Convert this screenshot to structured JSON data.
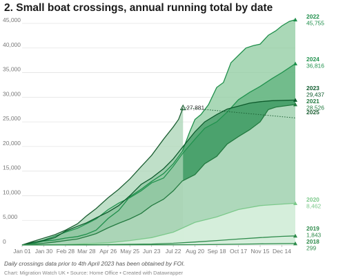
{
  "title": "2. Small boat crossings, annual running total by date",
  "footer": {
    "note": "Daily crossings data prior to 4th April 2023 has been obtained by FOI.",
    "source": "Chart: Migration Watch UK • Source: Home Office • Created with Datawrapper"
  },
  "chart_data": {
    "type": "line",
    "title": "2. Small boat crossings, annual running total by date",
    "xlabel": "",
    "ylabel": "",
    "x_unit": "day of year",
    "xlim": [
      1,
      366
    ],
    "ylim": [
      0,
      45000
    ],
    "grid": true,
    "x_ticks": [
      {
        "label": "Jan 01",
        "day": 1
      },
      {
        "label": "Jan 30",
        "day": 30
      },
      {
        "label": "Feb 28",
        "day": 59
      },
      {
        "label": "Mar 28",
        "day": 87
      },
      {
        "label": "Apr 26",
        "day": 116
      },
      {
        "label": "May 25",
        "day": 145
      },
      {
        "label": "Jun 23",
        "day": 174
      },
      {
        "label": "Jul 22",
        "day": 203
      },
      {
        "label": "Aug 20",
        "day": 232
      },
      {
        "label": "Sep 18",
        "day": 261
      },
      {
        "label": "Oct 17",
        "day": 290
      },
      {
        "label": "Nov 15",
        "day": 319
      },
      {
        "label": "Dec 14",
        "day": 348
      }
    ],
    "y_ticks": [
      {
        "label": "0",
        "value": 0
      },
      {
        "label": "5,000",
        "value": 5000
      },
      {
        "label": "10,000",
        "value": 10000
      },
      {
        "label": "15,000",
        "value": 15000
      },
      {
        "label": "20,000",
        "value": 20000
      },
      {
        "label": "25,000",
        "value": 25000
      },
      {
        "label": "30,000",
        "value": 30000
      },
      {
        "label": "35,000",
        "value": 35000
      },
      {
        "label": "40,000",
        "value": 40000
      },
      {
        "label": "45,000",
        "value": 45000
      }
    ],
    "series": [
      {
        "name": "2022",
        "end_label": "45,755",
        "color": "#1e8e4a",
        "fill": "#8ecb9f",
        "points": [
          [
            1,
            0
          ],
          [
            15,
            300
          ],
          [
            30,
            800
          ],
          [
            45,
            1000
          ],
          [
            59,
            1400
          ],
          [
            75,
            1700
          ],
          [
            87,
            2200
          ],
          [
            100,
            3000
          ],
          [
            116,
            5400
          ],
          [
            130,
            7000
          ],
          [
            145,
            9800
          ],
          [
            160,
            11300
          ],
          [
            174,
            12900
          ],
          [
            190,
            14500
          ],
          [
            203,
            16500
          ],
          [
            215,
            19000
          ],
          [
            225,
            23000
          ],
          [
            232,
            25500
          ],
          [
            240,
            26500
          ],
          [
            250,
            28500
          ],
          [
            261,
            32000
          ],
          [
            270,
            33000
          ],
          [
            280,
            37000
          ],
          [
            290,
            38500
          ],
          [
            300,
            40000
          ],
          [
            310,
            40500
          ],
          [
            319,
            40800
          ],
          [
            330,
            42600
          ],
          [
            340,
            43500
          ],
          [
            348,
            44500
          ],
          [
            358,
            45400
          ],
          [
            366,
            45755
          ]
        ]
      },
      {
        "name": "2024",
        "end_label": "36,816",
        "color": "#21924e",
        "fill": "#5fb37e",
        "points": [
          [
            1,
            0
          ],
          [
            15,
            400
          ],
          [
            30,
            1000
          ],
          [
            45,
            1800
          ],
          [
            59,
            2600
          ],
          [
            75,
            3400
          ],
          [
            87,
            4300
          ],
          [
            100,
            5300
          ],
          [
            116,
            7200
          ],
          [
            130,
            8500
          ],
          [
            145,
            9600
          ],
          [
            160,
            11000
          ],
          [
            174,
            12600
          ],
          [
            190,
            13600
          ],
          [
            203,
            16000
          ],
          [
            215,
            18500
          ],
          [
            232,
            21500
          ],
          [
            245,
            23700
          ],
          [
            261,
            25000
          ],
          [
            275,
            27000
          ],
          [
            290,
            29500
          ],
          [
            305,
            31000
          ],
          [
            319,
            32200
          ],
          [
            335,
            33800
          ],
          [
            348,
            35000
          ],
          [
            366,
            36816
          ]
        ]
      },
      {
        "name": "2023",
        "end_label": "29,437",
        "color": "#0d5a2c",
        "fill": "#3f9a63",
        "points": [
          [
            1,
            0
          ],
          [
            15,
            500
          ],
          [
            30,
            900
          ],
          [
            45,
            1500
          ],
          [
            59,
            2800
          ],
          [
            75,
            3800
          ],
          [
            87,
            4500
          ],
          [
            100,
            5500
          ],
          [
            116,
            6700
          ],
          [
            130,
            8000
          ],
          [
            145,
            10000
          ],
          [
            160,
            12300
          ],
          [
            174,
            13600
          ],
          [
            190,
            15500
          ],
          [
            203,
            17500
          ],
          [
            215,
            19800
          ],
          [
            232,
            23000
          ],
          [
            245,
            25000
          ],
          [
            261,
            26500
          ],
          [
            275,
            27600
          ],
          [
            290,
            28200
          ],
          [
            305,
            28800
          ],
          [
            319,
            29100
          ],
          [
            335,
            29300
          ],
          [
            366,
            29437
          ]
        ]
      },
      {
        "name": "2021",
        "end_label": "28,526",
        "color": "#237a40",
        "fill": "#cfead6",
        "points": [
          [
            1,
            0
          ],
          [
            15,
            150
          ],
          [
            30,
            350
          ],
          [
            45,
            600
          ],
          [
            59,
            900
          ],
          [
            75,
            1200
          ],
          [
            87,
            1700
          ],
          [
            100,
            2300
          ],
          [
            116,
            3500
          ],
          [
            130,
            4400
          ],
          [
            145,
            5300
          ],
          [
            160,
            6400
          ],
          [
            174,
            8000
          ],
          [
            190,
            9300
          ],
          [
            203,
            11000
          ],
          [
            215,
            13000
          ],
          [
            232,
            14300
          ],
          [
            245,
            16500
          ],
          [
            261,
            18000
          ],
          [
            275,
            20500
          ],
          [
            290,
            22000
          ],
          [
            305,
            23400
          ],
          [
            319,
            25000
          ],
          [
            330,
            27500
          ],
          [
            340,
            28000
          ],
          [
            366,
            28526
          ]
        ]
      },
      {
        "name": "2025",
        "end_label": "",
        "color": "#1b5e32",
        "fill": "#a9d4b6",
        "points": [
          [
            1,
            0
          ],
          [
            15,
            700
          ],
          [
            30,
            1400
          ],
          [
            45,
            2100
          ],
          [
            59,
            3000
          ],
          [
            75,
            4300
          ],
          [
            87,
            5900
          ],
          [
            100,
            7400
          ],
          [
            116,
            9600
          ],
          [
            130,
            11300
          ],
          [
            145,
            13400
          ],
          [
            160,
            15900
          ],
          [
            174,
            18200
          ],
          [
            190,
            21500
          ],
          [
            203,
            24000
          ],
          [
            210,
            25500
          ],
          [
            216,
            27881
          ]
        ]
      },
      {
        "name": "2020",
        "end_label": "8,462",
        "color": "#7cc98b",
        "fill": "#e2f5e5",
        "points": [
          [
            1,
            0
          ],
          [
            30,
            40
          ],
          [
            59,
            90
          ],
          [
            87,
            250
          ],
          [
            116,
            450
          ],
          [
            145,
            900
          ],
          [
            174,
            1500
          ],
          [
            203,
            2600
          ],
          [
            232,
            4600
          ],
          [
            261,
            5700
          ],
          [
            290,
            7200
          ],
          [
            319,
            8000
          ],
          [
            348,
            8300
          ],
          [
            366,
            8462
          ]
        ]
      },
      {
        "name": "2019",
        "end_label": "1,843",
        "color": "#2e8b4b",
        "fill": "none",
        "points": [
          [
            1,
            0
          ],
          [
            59,
            10
          ],
          [
            116,
            80
          ],
          [
            174,
            200
          ],
          [
            203,
            350
          ],
          [
            232,
            600
          ],
          [
            261,
            900
          ],
          [
            290,
            1200
          ],
          [
            319,
            1500
          ],
          [
            348,
            1750
          ],
          [
            366,
            1843
          ]
        ]
      },
      {
        "name": "2018",
        "end_label": "299",
        "color": "#2e8b4b",
        "fill": "none",
        "points": [
          [
            1,
            0
          ],
          [
            116,
            10
          ],
          [
            232,
            50
          ],
          [
            290,
            150
          ],
          [
            319,
            230
          ],
          [
            348,
            280
          ],
          [
            366,
            299
          ]
        ]
      }
    ],
    "annotations": [
      {
        "series": "2025",
        "text": "27,881",
        "x": 216,
        "y": 27881,
        "projection_end_y": 25800
      }
    ]
  }
}
